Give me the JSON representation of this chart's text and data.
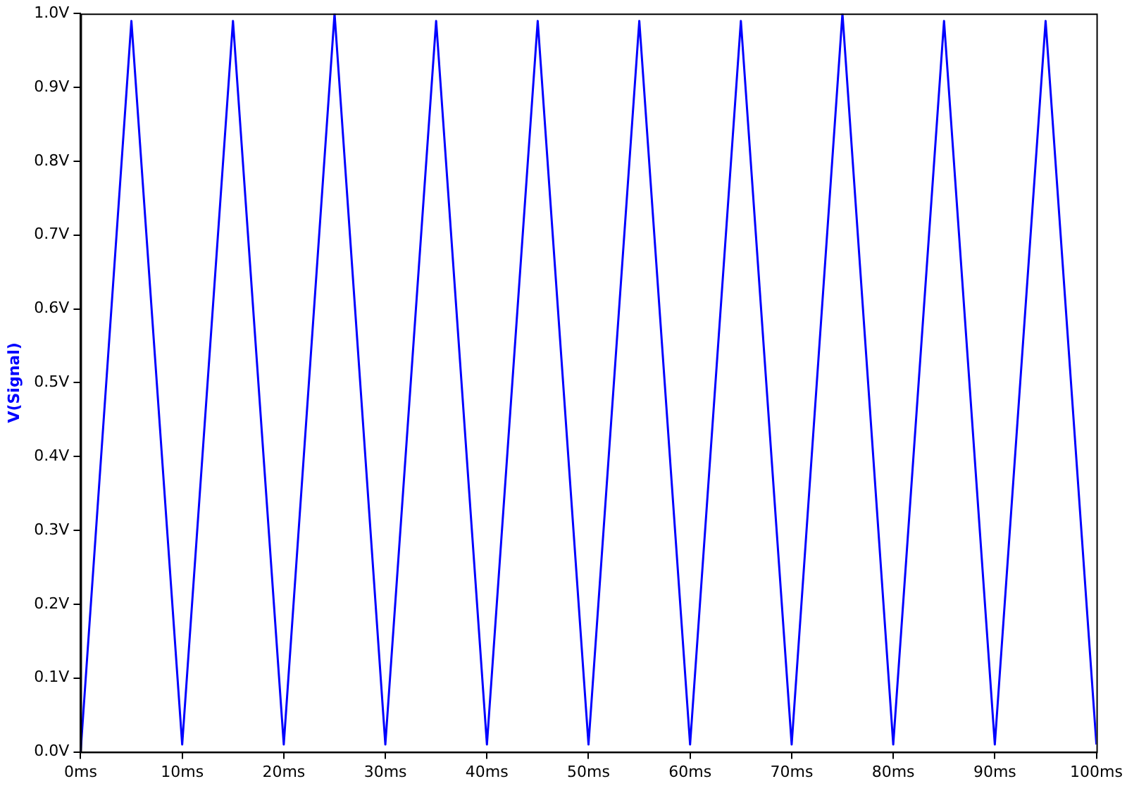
{
  "chart_data": {
    "type": "line",
    "ylabel": "V(Signal)",
    "x": [
      0,
      5,
      10,
      15,
      20,
      25,
      30,
      35,
      40,
      45,
      50,
      55,
      60,
      65,
      70,
      75,
      80,
      85,
      90,
      95,
      100
    ],
    "series": [
      {
        "color": "#0000ff",
        "values": [
          0,
          0.99,
          0.01,
          0.99,
          0.01,
          1.0,
          0.01,
          0.99,
          0.01,
          0.99,
          0.01,
          0.99,
          0.01,
          0.99,
          0.01,
          1.0,
          0.01,
          0.99,
          0.01,
          0.99,
          0.01
        ]
      }
    ],
    "xlim": [
      0,
      100
    ],
    "xticks": [
      {
        "value": 0,
        "label": "0ms"
      },
      {
        "value": 10,
        "label": "10ms"
      },
      {
        "value": 20,
        "label": "20ms"
      },
      {
        "value": 30,
        "label": "30ms"
      },
      {
        "value": 40,
        "label": "40ms"
      },
      {
        "value": 50,
        "label": "50ms"
      },
      {
        "value": 60,
        "label": "60ms"
      },
      {
        "value": 70,
        "label": "70ms"
      },
      {
        "value": 80,
        "label": "80ms"
      },
      {
        "value": 90,
        "label": "90ms"
      },
      {
        "value": 100,
        "label": "100ms"
      }
    ],
    "ylim": [
      0,
      1
    ],
    "yticks": [
      {
        "value": 0,
        "label": "0.0V"
      },
      {
        "value": 0.1,
        "label": "0.1V"
      },
      {
        "value": 0.2,
        "label": "0.2V"
      },
      {
        "value": 0.3,
        "label": "0.3V"
      },
      {
        "value": 0.4,
        "label": "0.4V"
      },
      {
        "value": 0.5,
        "label": "0.5V"
      },
      {
        "value": 0.6,
        "label": "0.6V"
      },
      {
        "value": 0.7,
        "label": "0.7V"
      },
      {
        "value": 0.8,
        "label": "0.8V"
      },
      {
        "value": 0.9,
        "label": "0.9V"
      },
      {
        "value": 1,
        "label": "1.0V"
      }
    ],
    "grid": false,
    "legend": false,
    "marker": "none",
    "line_style": "solid"
  }
}
